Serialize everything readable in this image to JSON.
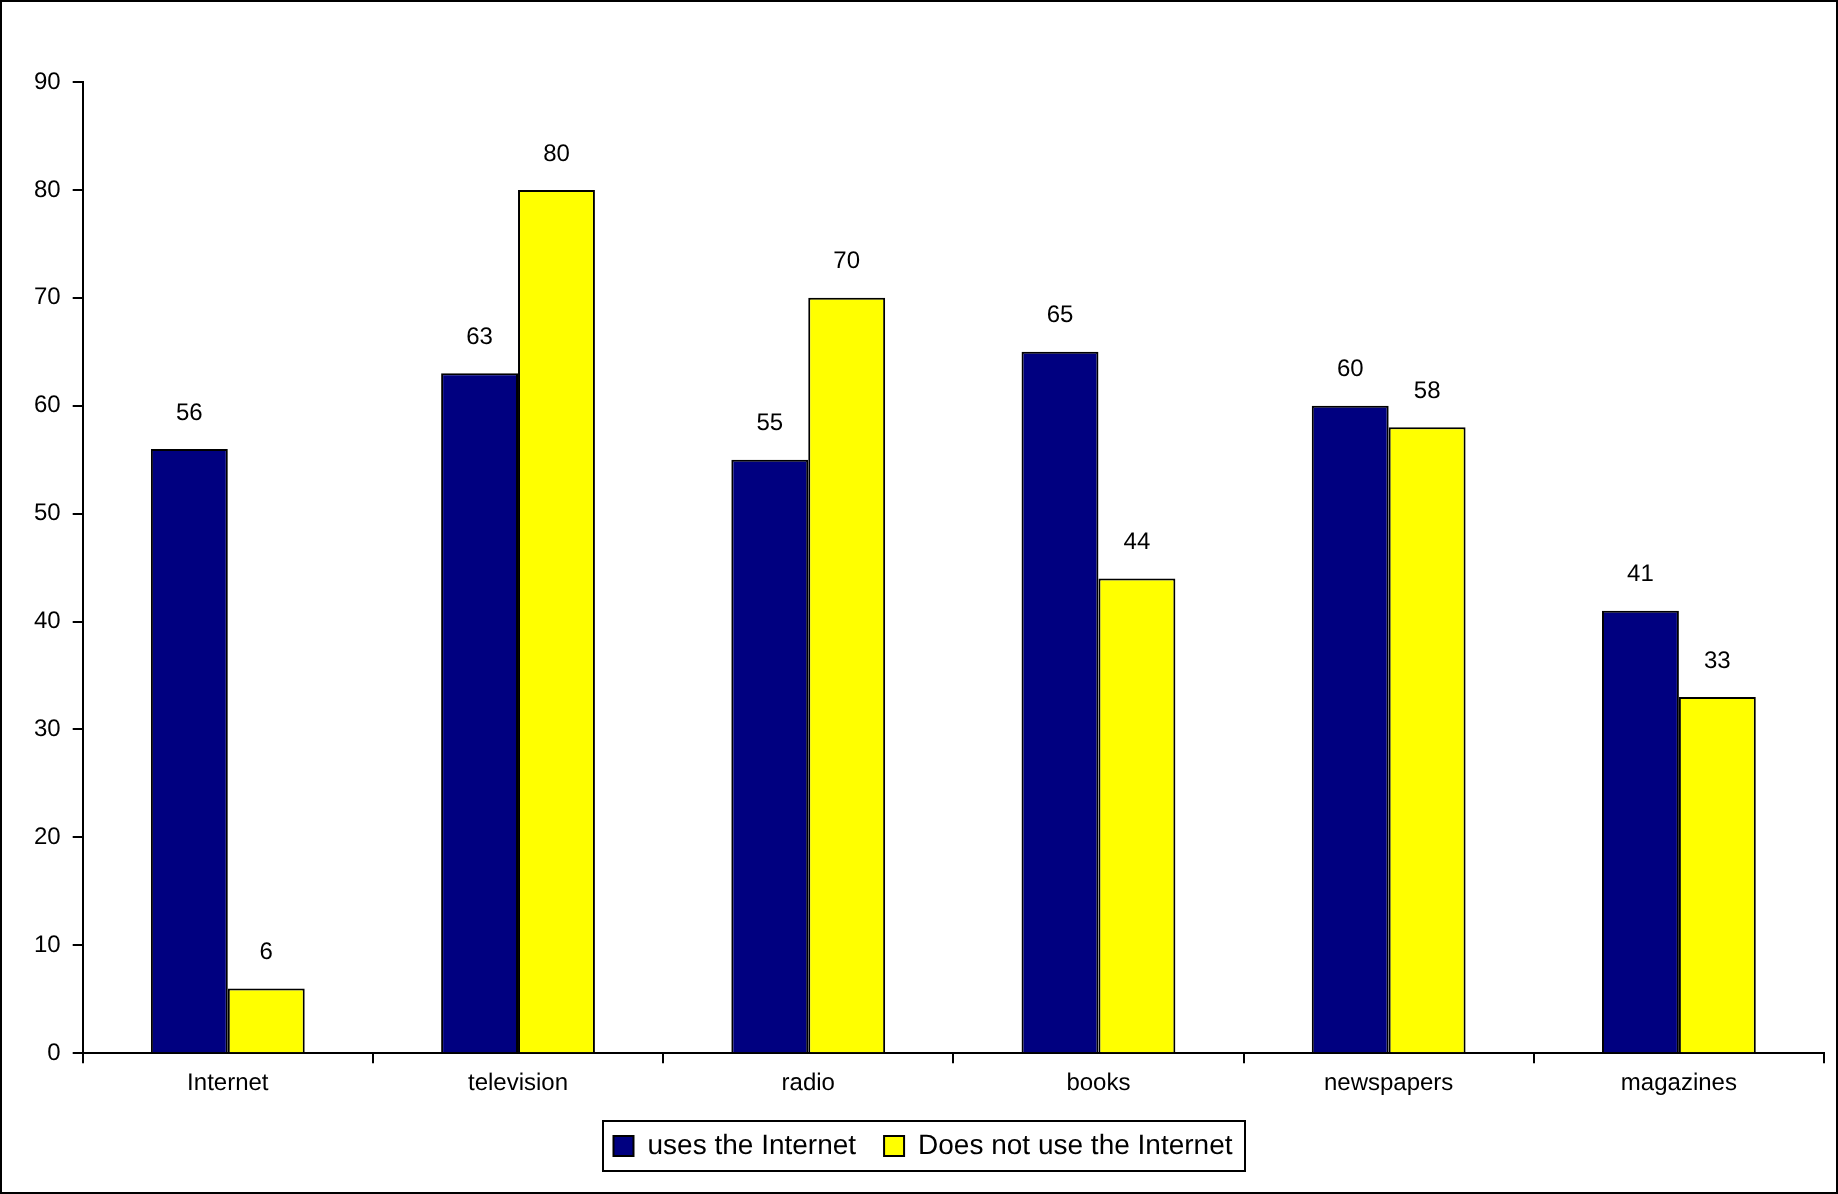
{
  "chart_data": {
    "type": "bar",
    "categories": [
      "Internet",
      "television",
      "radio",
      "books",
      "newspapers",
      "magazines"
    ],
    "series": [
      {
        "name": "uses the Internet",
        "color": "#000080",
        "values": [
          56,
          63,
          55,
          65,
          60,
          41
        ]
      },
      {
        "name": "Does not use the Internet",
        "color": "#ffff00",
        "values": [
          6,
          80,
          70,
          44,
          58,
          33
        ]
      }
    ],
    "ylim": [
      0,
      90
    ],
    "yticks": [
      0,
      10,
      20,
      30,
      40,
      50,
      60,
      70,
      80,
      90
    ],
    "grid": false,
    "legend": "bottom",
    "data_labels": true
  }
}
